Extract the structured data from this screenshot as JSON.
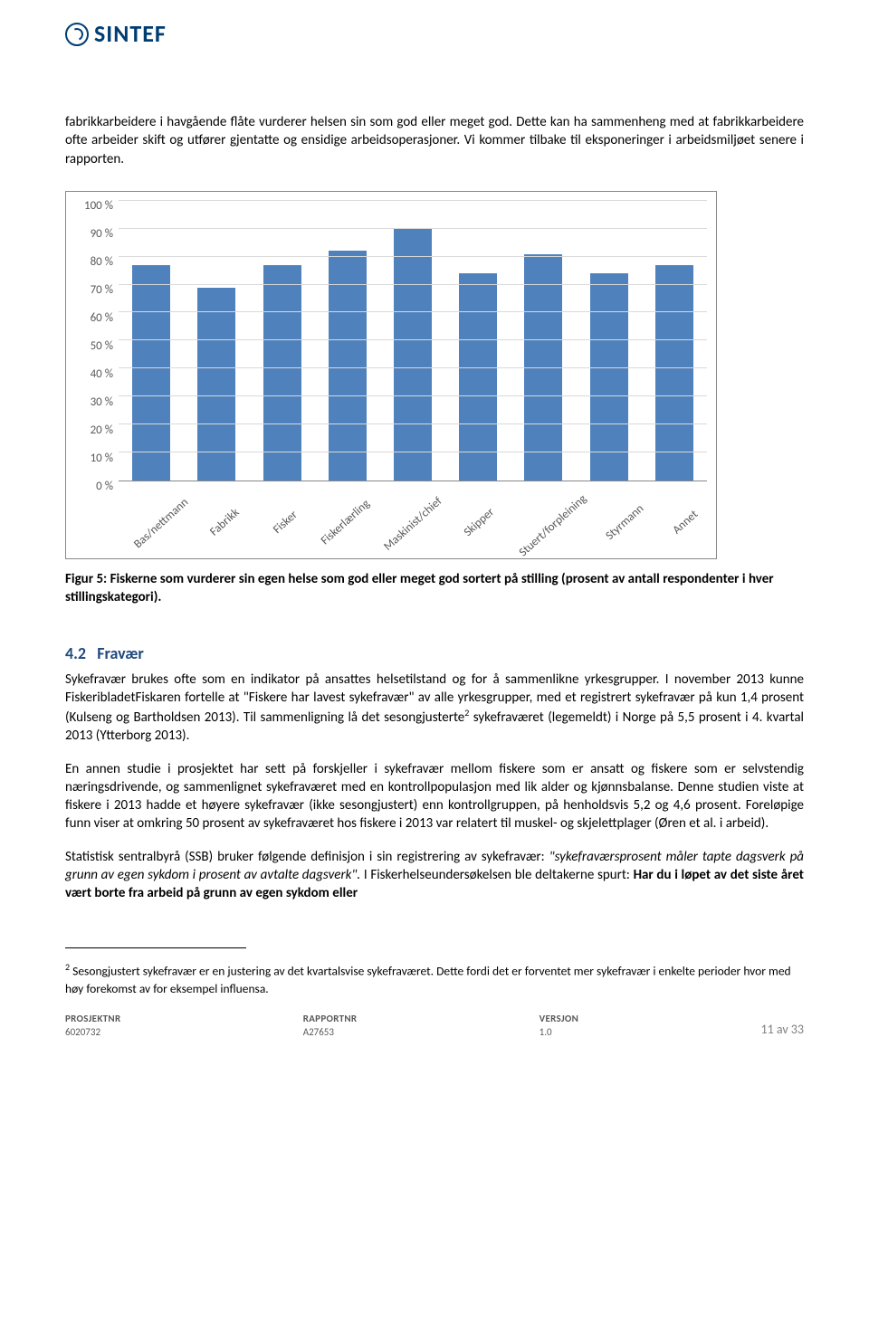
{
  "logo": {
    "text": "SINTEF",
    "color": "#003d73"
  },
  "intro": {
    "p1": "fabrikkarbeidere i havgående flåte vurderer helsen sin som god eller meget god. Dette kan ha sammenheng med at fabrikkarbeidere ofte arbeider skift og utfører gjentatte og ensidige arbeidsoperasjoner. Vi kommer tilbake til eksponeringer i arbeidsmiljøet senere i rapporten."
  },
  "chart": {
    "type": "bar",
    "ylim": [
      0,
      100
    ],
    "ytick_step": 10,
    "y_suffix": " %",
    "categories": [
      "Bas/nettmann",
      "Fabrikk",
      "Fisker",
      "Fiskerlærling",
      "Maskinist/chief",
      "Skipper",
      "Stuert/forpleining",
      "Styrmann",
      "Annet"
    ],
    "values": [
      77,
      69,
      77,
      82,
      90,
      74,
      81,
      74,
      77
    ],
    "bar_color": "#4f81bd",
    "grid_color": "#d9d9d9",
    "axis_text_color": "#595959",
    "border_color": "#888888",
    "label_fontsize": 13
  },
  "caption": "Figur 5: Fiskerne som vurderer sin egen helse som god eller meget god sortert på stilling (prosent av antall respondenter i hver stillingskategori).",
  "section": {
    "number": "4.2",
    "title": "Fravær",
    "p1a": "Sykefravær brukes ofte som en indikator på ansattes helsetilstand og for å sammenlikne yrkesgrupper. I november 2013 kunne FiskeribladetFiskaren fortelle at \"Fiskere har lavest sykefravær\" av alle yrkesgrupper, med et registrert sykefravær på kun 1,4 prosent (Kulseng og Bartholdsen 2013).  Til sammenligning lå det sesongjusterte",
    "p1_sup": "2",
    "p1b": " sykefraværet (legemeldt) i Norge på 5,5 prosent i 4. kvartal 2013 (Ytterborg 2013).",
    "p2": "En annen studie i prosjektet har sett på forskjeller i sykefravær mellom fiskere som er ansatt og fiskere som er selvstendig næringsdrivende, og sammenlignet sykefraværet med en kontrollpopulasjon med lik alder og kjønnsbalanse. Denne studien viste at fiskere i 2013 hadde et høyere sykefravær (ikke sesongjustert) enn kontrollgruppen, på henholdsvis 5,2 og 4,6 prosent. Foreløpige funn viser at omkring 50 prosent av sykefraværet hos fiskere i 2013 var relatert til muskel- og skjelettplager (Øren et al. i arbeid).",
    "p3a": "Statistisk sentralbyrå (SSB) bruker følgende definisjon i sin registrering av sykefravær: ",
    "p3_quote": "\"sykefraværsprosent måler tapte dagsverk på grunn av egen sykdom i prosent av avtalte dagsverk\".",
    "p3b": "  I Fiskerhelseundersøkelsen ble deltakerne spurt: ",
    "p3_bold": "Har du i løpet av det siste året vært borte fra arbeid på grunn av egen sykdom eller"
  },
  "footnote": {
    "sup": "2",
    "text": " Sesongjustert sykefravær er en justering av det kvartalsvise sykefraværet. Dette fordi det er forventet mer sykefravær i enkelte perioder hvor med høy forekomst av for eksempel influensa."
  },
  "footer": {
    "col1": {
      "label": "PROSJEKTNR",
      "value": "6020732"
    },
    "col2": {
      "label": "RAPPORTNR",
      "value": "A27653"
    },
    "col3": {
      "label": "VERSJON",
      "value": "1.0"
    },
    "page": "11 av 33"
  }
}
